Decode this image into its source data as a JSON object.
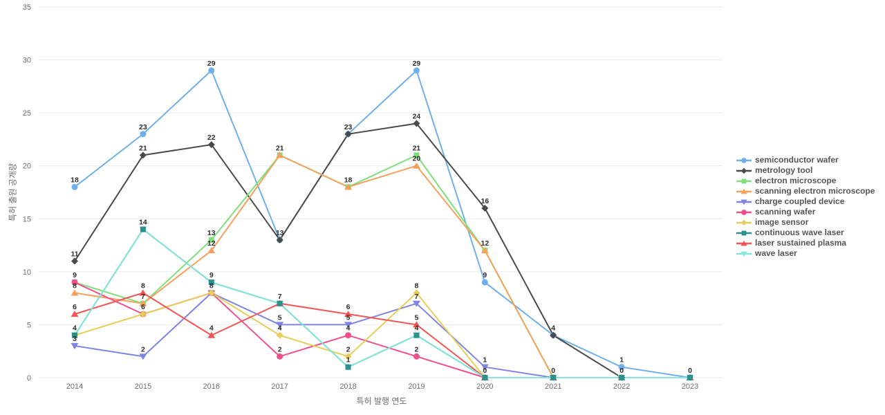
{
  "chart_data": {
    "type": "line",
    "title": "",
    "xlabel": "특허 발행 연도",
    "ylabel": "특허 출원 공개량",
    "x": [
      2014,
      2015,
      2016,
      2017,
      2018,
      2019,
      2020,
      2021,
      2022,
      2023
    ],
    "ylim": [
      0,
      35
    ],
    "yticks": [
      0,
      5,
      10,
      15,
      20,
      25,
      30,
      35
    ],
    "grid": true,
    "legend_position": "right",
    "series": [
      {
        "name": "semiconductor wafer",
        "color": "#6FAFEA",
        "marker": "circle",
        "values": [
          18,
          23,
          29,
          13,
          23,
          29,
          9,
          4,
          1,
          0
        ]
      },
      {
        "name": "metrology tool",
        "color": "#4A4A4A",
        "marker": "diamond",
        "values": [
          11,
          21,
          22,
          13,
          23,
          24,
          16,
          4,
          0
        ]
      },
      {
        "name": "electron microscope",
        "color": "#7DE07B",
        "marker": "square",
        "values": [
          9,
          7,
          13,
          21,
          18,
          21,
          12,
          0
        ]
      },
      {
        "name": "scanning electron microscope",
        "color": "#F5A15D",
        "marker": "triangle-up",
        "values": [
          8,
          7,
          12,
          21,
          18,
          20,
          12,
          0
        ]
      },
      {
        "name": "charge coupled device",
        "color": "#7F84E4",
        "marker": "triangle-down",
        "values": [
          3,
          2,
          8,
          5,
          5,
          7,
          1,
          0
        ]
      },
      {
        "name": "scanning wafer",
        "color": "#F1508B",
        "marker": "circle",
        "values": [
          9,
          6,
          8,
          2,
          4,
          2,
          0
        ]
      },
      {
        "name": "image sensor",
        "color": "#E6CE5A",
        "marker": "diamond",
        "values": [
          4,
          6,
          8,
          4,
          2,
          8,
          0
        ]
      },
      {
        "name": "continuous wave laser",
        "color": "#2E908D",
        "marker": "square",
        "values": [
          4,
          14,
          9,
          7,
          1,
          4,
          0,
          0,
          0,
          0
        ]
      },
      {
        "name": "laser sustained plasma",
        "color": "#F25552",
        "marker": "triangle-up",
        "values": [
          6,
          8,
          4,
          7,
          6,
          5,
          0,
          0,
          0,
          0
        ]
      },
      {
        "name": "wave laser",
        "color": "#85E6D9",
        "marker": "triangle-down",
        "values": [
          4,
          14,
          9,
          7,
          1,
          4,
          0,
          0,
          0,
          0
        ]
      }
    ]
  }
}
